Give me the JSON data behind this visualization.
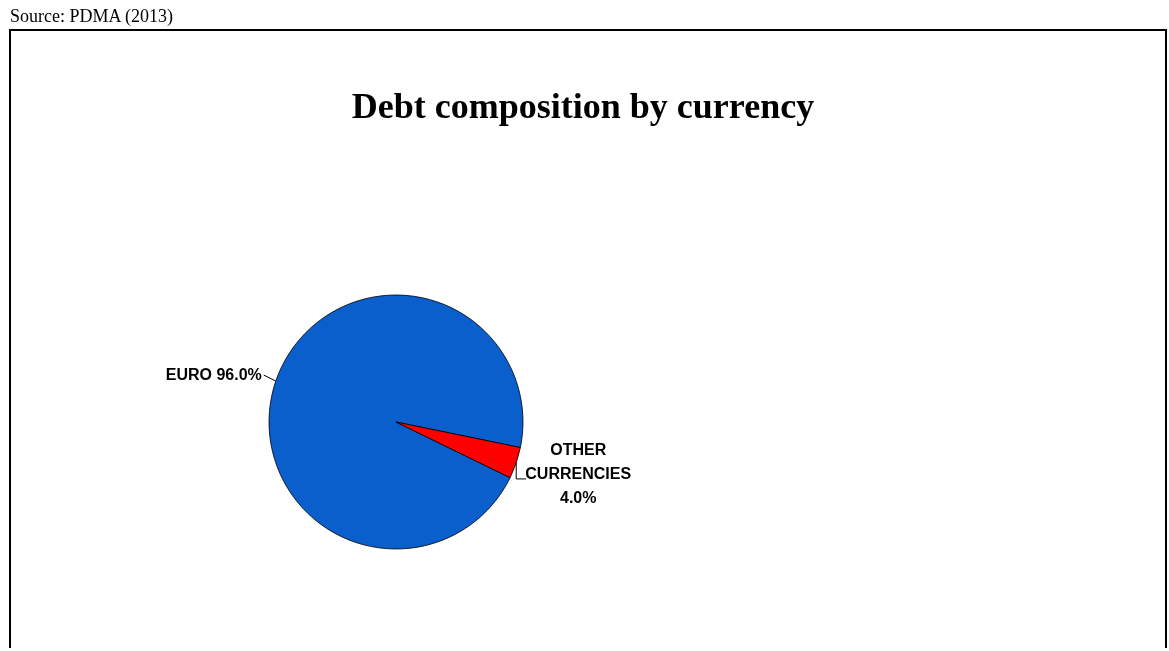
{
  "chart_data": {
    "type": "pie",
    "title": "Debt composition by currency",
    "annotations": [
      "Source: PDMA (2013)"
    ],
    "categories": [
      "EURO",
      "OTHER CURRENCIES"
    ],
    "values": [
      96,
      4
    ],
    "colors": [
      "#0a5fcc",
      "#ff0000"
    ],
    "value_labels": [
      "96.0%",
      "4.0%"
    ]
  }
}
